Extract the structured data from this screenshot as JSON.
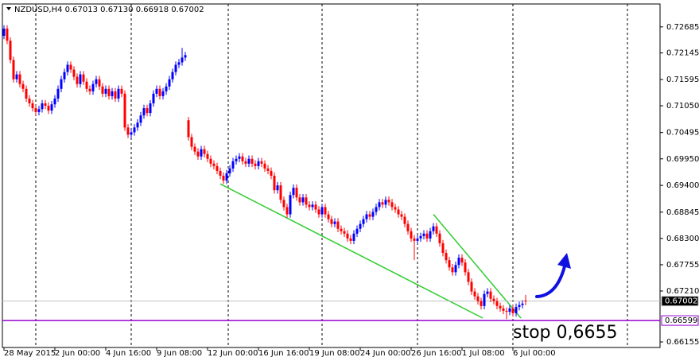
{
  "chart_data": {
    "type": "candlestick",
    "title": "NZDUSD,H4  0.67013 0.67130 0.66918 0.67002",
    "annotation": "stop 0,6655",
    "up_color": "#0000ff",
    "down_color": "#ff0000",
    "ylim": [
      0.6604,
      0.7316
    ],
    "yticks": [
      0.72685,
      0.72145,
      0.71595,
      {
        "value": 0.7105,
        "label": "0.71050"
      },
      0.70495,
      {
        "value": 0.6995,
        "label": "0.69950"
      },
      {
        "value": 0.694,
        "label": "0.69400"
      },
      0.68845,
      {
        "value": 0.683,
        "label": "0.68300"
      },
      0.67755,
      {
        "value": 0.6721,
        "label": "0.67210"
      },
      0.66155
    ],
    "hlines": [
      {
        "value": 0.67002,
        "color": "#c0c0c0",
        "label_bg": "#000000",
        "label_color": "#ffffff"
      },
      {
        "value": 0.66599,
        "color": "#9400d3",
        "label_bg": "#ffffff",
        "label_color": "#000000"
      }
    ],
    "trend_lines": [
      {
        "color": "#32cd32",
        "x": [
          68,
          150.5
        ],
        "y": [
          0.6943,
          0.6665
        ]
      },
      {
        "color": "#32cd32",
        "x": [
          135,
          162.5
        ],
        "y": [
          0.688,
          0.6665
        ]
      }
    ],
    "categories": [
      "28 May 2015",
      null,
      null,
      null,
      null,
      null,
      null,
      null,
      null,
      null,
      null,
      null,
      null,
      null,
      null,
      null,
      "2 Jun 00:00",
      null,
      null,
      null,
      null,
      null,
      null,
      null,
      null,
      null,
      null,
      null,
      null,
      null,
      null,
      null,
      "4 Jun 16:00",
      null,
      null,
      null,
      null,
      null,
      null,
      null,
      null,
      null,
      null,
      null,
      null,
      null,
      null,
      null,
      "9 Jun 08:00",
      null,
      null,
      null,
      null,
      null,
      null,
      null,
      null,
      null,
      null,
      null,
      null,
      null,
      null,
      null,
      "12 Jun 00:00",
      null,
      null,
      null,
      null,
      null,
      null,
      null,
      null,
      null,
      null,
      null,
      null,
      null,
      null,
      null,
      "16 Jun 16:00",
      null,
      null,
      null,
      null,
      null,
      null,
      null,
      null,
      null,
      null,
      null,
      null,
      null,
      null,
      null,
      "19 Jun 08:00",
      null,
      null,
      null,
      null,
      null,
      null,
      null,
      null,
      null,
      null,
      null,
      null,
      null,
      null,
      null,
      "24 Jun 00:00",
      null,
      null,
      null,
      null,
      null,
      null,
      null,
      null,
      null,
      null,
      null,
      null,
      null,
      null,
      null,
      "26 Jun 16:00",
      null,
      null,
      null,
      null,
      null,
      null,
      null,
      null,
      null,
      null,
      null,
      null,
      null,
      null,
      null,
      "1 Jul 08:00",
      null,
      null,
      null,
      null,
      null,
      null,
      null,
      null,
      null,
      null,
      null,
      null,
      null,
      null,
      null,
      "6 Jul 00:00",
      null,
      null,
      null,
      null
    ],
    "open": [
      0.725,
      0.7265,
      0.724,
      0.72,
      0.716,
      0.717,
      0.715,
      0.714,
      0.712,
      0.711,
      0.71,
      0.7092,
      0.7098,
      0.711,
      0.7105,
      0.7095,
      0.7108,
      0.712,
      0.714,
      0.716,
      0.7175,
      0.719,
      0.718,
      0.7165,
      0.715,
      0.717,
      0.7155,
      0.714,
      0.7135,
      0.715,
      0.716,
      0.7145,
      0.713,
      0.714,
      0.7125,
      0.7135,
      0.712,
      0.714,
      0.713,
      0.706,
      0.7045,
      0.705,
      0.706,
      0.707,
      0.7085,
      0.71,
      0.709,
      0.711,
      0.713,
      0.714,
      0.7125,
      0.7135,
      0.7145,
      0.716,
      0.7175,
      0.719,
      0.7195,
      0.7205,
      0.7075,
      0.704,
      0.702,
      0.701,
      0.7,
      0.7015,
      0.7005,
      0.6995,
      0.6985,
      0.698,
      0.697,
      0.696,
      0.695,
      0.6965,
      0.6975,
      0.699,
      0.6995,
      0.7,
      0.699,
      0.6985,
      0.6995,
      0.6985,
      0.698,
      0.699,
      0.6985,
      0.6975,
      0.697,
      0.696,
      0.693,
      0.694,
      0.691,
      0.6895,
      0.688,
      0.692,
      0.6935,
      0.6915,
      0.6905,
      0.6915,
      0.69,
      0.6895,
      0.69,
      0.689,
      0.688,
      0.6895,
      0.688,
      0.687,
      0.686,
      0.6865,
      0.685,
      0.6845,
      0.684,
      0.683,
      0.6825,
      0.684,
      0.685,
      0.686,
      0.687,
      0.688,
      0.6875,
      0.6885,
      0.6895,
      0.6905,
      0.69,
      0.691,
      0.6905,
      0.6895,
      0.689,
      0.688,
      0.6875,
      0.686,
      0.6845,
      0.683,
      0.6825,
      0.683,
      0.6835,
      0.684,
      0.683,
      0.6845,
      0.6855,
      0.684,
      0.682,
      0.68,
      0.6785,
      0.677,
      0.676,
      0.6775,
      0.679,
      0.678,
      0.676,
      0.674,
      0.672,
      0.671,
      0.67,
      0.669,
      0.6715,
      0.672,
      0.6705,
      0.67,
      0.669,
      0.6685,
      0.668,
      0.6678,
      0.6685,
      0.6675,
      0.6688,
      0.6692,
      0.67013
    ],
    "high": [
      0.7272,
      0.7272,
      0.7247,
      0.7207,
      0.7177,
      0.7177,
      0.7157,
      0.7147,
      0.7127,
      0.7117,
      0.7107,
      0.7105,
      0.7117,
      0.7117,
      0.7112,
      0.7115,
      0.7127,
      0.7147,
      0.7167,
      0.7182,
      0.7197,
      0.7197,
      0.7187,
      0.7172,
      0.7177,
      0.7177,
      0.7162,
      0.7147,
      0.7157,
      0.7167,
      0.7167,
      0.7152,
      0.7147,
      0.7147,
      0.7142,
      0.7142,
      0.7147,
      0.7147,
      0.7137,
      0.7067,
      0.7057,
      0.7067,
      0.7077,
      0.7092,
      0.7107,
      0.7107,
      0.7117,
      0.7137,
      0.7147,
      0.7147,
      0.7142,
      0.7152,
      0.7167,
      0.7182,
      0.7197,
      0.7202,
      0.7225,
      0.7217,
      0.7082,
      0.7047,
      0.7027,
      0.7017,
      0.7022,
      0.7022,
      0.7012,
      0.7002,
      0.6992,
      0.6987,
      0.6977,
      0.6967,
      0.6972,
      0.6982,
      0.6997,
      0.7002,
      0.7007,
      0.7007,
      0.6997,
      0.7002,
      0.7002,
      0.6992,
      0.6997,
      0.6997,
      0.6992,
      0.6982,
      0.6977,
      0.6967,
      0.6947,
      0.6947,
      0.6917,
      0.6902,
      0.6927,
      0.6942,
      0.6942,
      0.6922,
      0.6922,
      0.6922,
      0.6907,
      0.6907,
      0.6907,
      0.6897,
      0.6902,
      0.6902,
      0.6887,
      0.6877,
      0.6872,
      0.6872,
      0.6857,
      0.6852,
      0.6847,
      0.6837,
      0.6847,
      0.6857,
      0.6867,
      0.6877,
      0.6887,
      0.6887,
      0.6892,
      0.6902,
      0.6912,
      0.6912,
      0.6917,
      0.6917,
      0.6912,
      0.6902,
      0.6897,
      0.6887,
      0.6882,
      0.6867,
      0.6852,
      0.6837,
      0.6837,
      0.6842,
      0.6847,
      0.6847,
      0.6852,
      0.6862,
      0.6862,
      0.6847,
      0.6827,
      0.6807,
      0.6792,
      0.6777,
      0.6782,
      0.6797,
      0.6797,
      0.6787,
      0.6767,
      0.6747,
      0.6727,
      0.6717,
      0.6707,
      0.6722,
      0.6727,
      0.6727,
      0.6712,
      0.6707,
      0.6697,
      0.6692,
      0.6687,
      0.6692,
      0.6692,
      0.6695,
      0.6699,
      0.6702,
      0.6713
    ],
    "low": [
      0.7243,
      0.7233,
      0.7193,
      0.7153,
      0.7153,
      0.7143,
      0.7133,
      0.7113,
      0.7103,
      0.7093,
      0.7085,
      0.7085,
      0.7091,
      0.7098,
      0.7088,
      0.7088,
      0.7101,
      0.7113,
      0.7133,
      0.7153,
      0.7168,
      0.7173,
      0.7158,
      0.7143,
      0.7143,
      0.7148,
      0.7133,
      0.7128,
      0.7128,
      0.7143,
      0.7138,
      0.7123,
      0.7123,
      0.7118,
      0.7118,
      0.7113,
      0.7113,
      0.7123,
      0.7053,
      0.7038,
      0.7038,
      0.7043,
      0.7053,
      0.7063,
      0.7078,
      0.7083,
      0.7083,
      0.7103,
      0.7123,
      0.7118,
      0.7118,
      0.7128,
      0.7138,
      0.7153,
      0.7168,
      0.7183,
      0.7188,
      0.7198,
      0.7033,
      0.7013,
      0.7003,
      0.6993,
      0.6993,
      0.6998,
      0.6988,
      0.6978,
      0.6973,
      0.6963,
      0.6953,
      0.6943,
      0.6943,
      0.6958,
      0.6968,
      0.6983,
      0.6988,
      0.6983,
      0.6978,
      0.6978,
      0.6978,
      0.6973,
      0.6973,
      0.6978,
      0.6968,
      0.6963,
      0.6953,
      0.6923,
      0.6923,
      0.6903,
      0.6888,
      0.6873,
      0.6873,
      0.6913,
      0.6908,
      0.6898,
      0.6898,
      0.6893,
      0.6888,
      0.6888,
      0.6883,
      0.6873,
      0.6873,
      0.6873,
      0.6863,
      0.6853,
      0.6853,
      0.6843,
      0.6838,
      0.6833,
      0.6823,
      0.6818,
      0.6818,
      0.6833,
      0.6843,
      0.6853,
      0.6863,
      0.6868,
      0.6868,
      0.6878,
      0.6888,
      0.6893,
      0.6893,
      0.6898,
      0.6888,
      0.6883,
      0.6873,
      0.6868,
      0.6853,
      0.6838,
      0.6823,
      0.6785,
      0.6818,
      0.6823,
      0.6828,
      0.6823,
      0.6823,
      0.6838,
      0.6833,
      0.6813,
      0.6793,
      0.6778,
      0.6763,
      0.6753,
      0.6753,
      0.6768,
      0.6773,
      0.6753,
      0.6733,
      0.6713,
      0.6703,
      0.6693,
      0.6683,
      0.6683,
      0.6708,
      0.6698,
      0.6693,
      0.6683,
      0.6678,
      0.6673,
      0.6663,
      0.6671,
      0.6668,
      0.6668,
      0.6681,
      0.6685,
      0.66918
    ],
    "close": [
      0.7265,
      0.724,
      0.72,
      0.716,
      0.717,
      0.715,
      0.714,
      0.712,
      0.711,
      0.71,
      0.7092,
      0.7098,
      0.711,
      0.7105,
      0.7095,
      0.7108,
      0.712,
      0.714,
      0.716,
      0.7175,
      0.719,
      0.718,
      0.7165,
      0.715,
      0.717,
      0.7155,
      0.714,
      0.7135,
      0.715,
      0.716,
      0.7145,
      0.713,
      0.714,
      0.7125,
      0.7135,
      0.712,
      0.714,
      0.713,
      0.706,
      0.7045,
      0.705,
      0.706,
      0.707,
      0.7085,
      0.71,
      0.709,
      0.711,
      0.713,
      0.714,
      0.7125,
      0.7135,
      0.7145,
      0.716,
      0.7175,
      0.719,
      0.7195,
      0.7205,
      0.721,
      0.704,
      0.702,
      0.701,
      0.7,
      0.7015,
      0.7005,
      0.6995,
      0.6985,
      0.698,
      0.697,
      0.696,
      0.695,
      0.6965,
      0.6975,
      0.699,
      0.6995,
      0.7,
      0.699,
      0.6985,
      0.6995,
      0.6985,
      0.698,
      0.699,
      0.6985,
      0.6975,
      0.697,
      0.696,
      0.693,
      0.694,
      0.691,
      0.6895,
      0.688,
      0.692,
      0.6935,
      0.6915,
      0.6905,
      0.6915,
      0.69,
      0.6895,
      0.69,
      0.689,
      0.688,
      0.6895,
      0.688,
      0.687,
      0.686,
      0.6865,
      0.685,
      0.6845,
      0.684,
      0.683,
      0.6825,
      0.684,
      0.685,
      0.686,
      0.687,
      0.688,
      0.6875,
      0.6885,
      0.6895,
      0.6905,
      0.69,
      0.691,
      0.6905,
      0.6895,
      0.689,
      0.688,
      0.6875,
      0.686,
      0.6845,
      0.683,
      0.6825,
      0.683,
      0.6835,
      0.684,
      0.683,
      0.6845,
      0.6855,
      0.684,
      0.682,
      0.68,
      0.6785,
      0.677,
      0.676,
      0.6775,
      0.679,
      0.678,
      0.676,
      0.674,
      0.672,
      0.671,
      0.67,
      0.669,
      0.6715,
      0.672,
      0.6705,
      0.67,
      0.669,
      0.6685,
      0.668,
      0.6678,
      0.6685,
      0.6675,
      0.6688,
      0.6692,
      0.6695,
      0.67002
    ]
  }
}
